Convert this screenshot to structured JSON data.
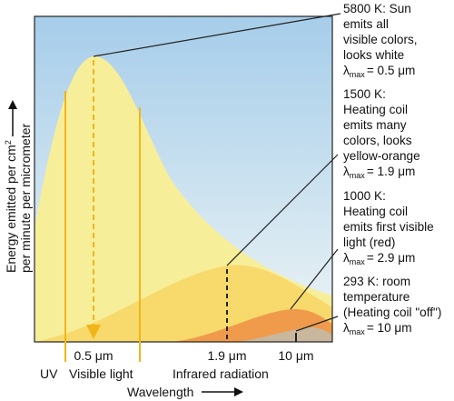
{
  "chart_data": {
    "type": "area",
    "xlabel": "Wavelength",
    "ylabel_line1": "Energy emitted per cm",
    "ylabel_sup": "2",
    "ylabel_line2": "per minute per micrometer",
    "x_tick_labels": [
      "0.5 μm",
      "1.9 μm",
      "10 μm"
    ],
    "region_labels": [
      "UV",
      "Visible light",
      "Infrared radiation"
    ],
    "series": [
      {
        "temperature": "5800 K",
        "peak_wavelength": "0.5 μm",
        "color": "#f7ee9a",
        "annotation": [
          "5800 K: Sun",
          "emits all",
          "visible colors,",
          "looks white"
        ],
        "lambda_value": "= 0.5 μm"
      },
      {
        "temperature": "1500 K",
        "peak_wavelength": "1.9 μm",
        "color": "#f6d868",
        "annotation": [
          "1500 K:",
          "Heating coil",
          "emits many",
          "colors, looks",
          "yellow-orange"
        ],
        "lambda_value": "= 1.9 μm"
      },
      {
        "temperature": "1000 K",
        "peak_wavelength": "2.9 μm",
        "color": "#ee9a4a",
        "annotation": [
          "1000 K:",
          "Heating coil",
          "emits first visible",
          "light (red)"
        ],
        "lambda_value": "= 2.9 μm"
      },
      {
        "temperature": "293 K",
        "peak_wavelength": "10 μm",
        "color": "#c8b79d",
        "annotation": [
          "293 K: room",
          "temperature",
          "(Heating coil \"off\")"
        ],
        "lambda_value": "= 10 μm"
      }
    ],
    "lambda_symbol": "λ",
    "lambda_sub": "max",
    "colors": {
      "sky_top": "#a6cdea",
      "sky_bottom": "#eaf3f6",
      "visible_band_lines": "#f2b519",
      "peak_marker": "#f2b519"
    }
  }
}
